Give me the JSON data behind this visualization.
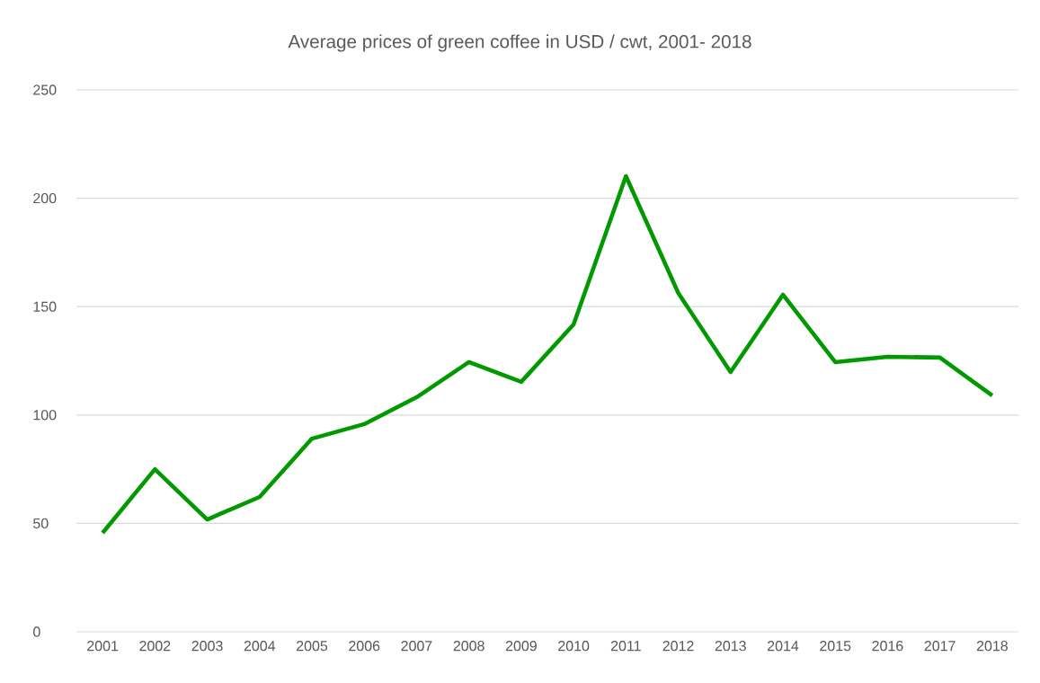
{
  "chart_data": {
    "type": "line",
    "title": "Average prices of green coffee in USD / cwt, 2001- 2018",
    "categories": [
      "2001",
      "2002",
      "2003",
      "2004",
      "2005",
      "2006",
      "2007",
      "2008",
      "2009",
      "2010",
      "2011",
      "2012",
      "2013",
      "2014",
      "2015",
      "2016",
      "2017",
      "2018"
    ],
    "series": [
      {
        "color": "#009900",
        "values": [
          45.6,
          75.0,
          51.8,
          62.2,
          89.1,
          95.8,
          108.2,
          124.4,
          115.3,
          141.8,
          210.2,
          156.3,
          119.8,
          155.5,
          124.4,
          126.9,
          126.5,
          109.0
        ]
      }
    ],
    "ylim": [
      0,
      250
    ],
    "yticks": [
      0,
      50,
      100,
      150,
      200,
      250
    ],
    "grid": "y",
    "marker": "none",
    "line_style": "solid"
  }
}
